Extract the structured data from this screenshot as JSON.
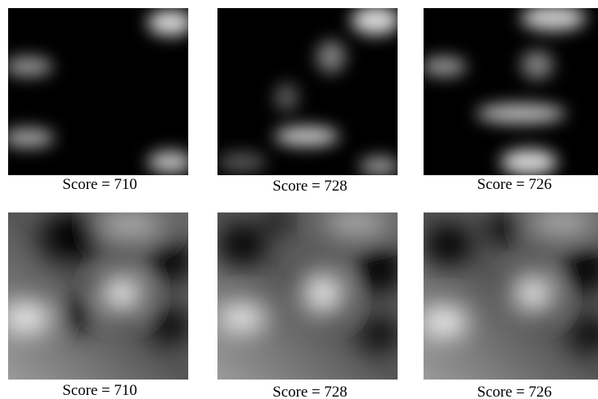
{
  "panels": [
    {
      "caption": "Score = 710"
    },
    {
      "caption": "Score = 728"
    },
    {
      "caption": "Score = 726"
    },
    {
      "caption": "Score = 710"
    },
    {
      "caption": "Score = 728"
    },
    {
      "caption": "Score = 726"
    }
  ]
}
